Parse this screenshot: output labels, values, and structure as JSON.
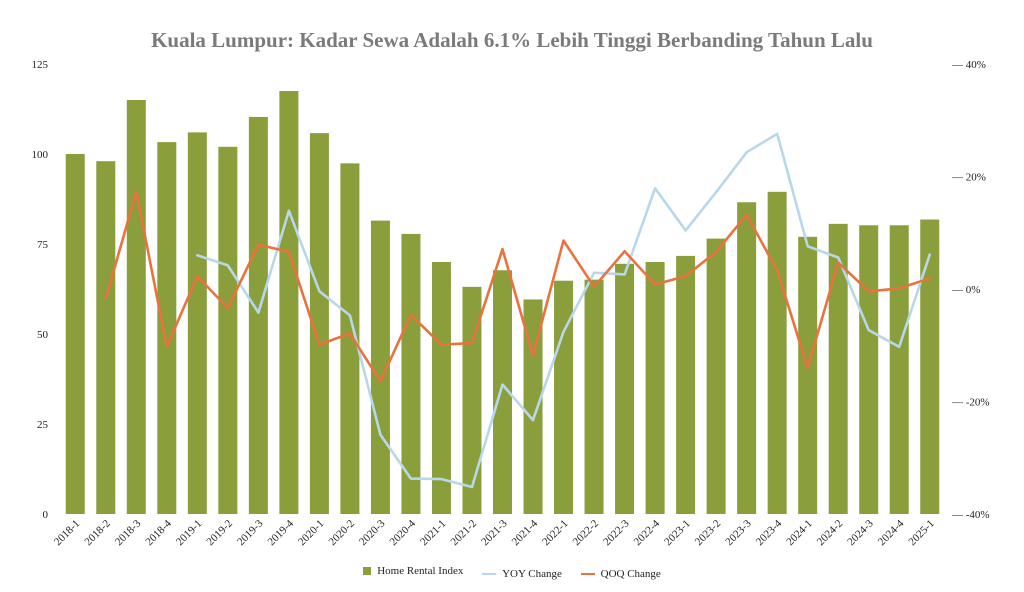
{
  "chart_data": {
    "type": "bar",
    "title": "Kuala Lumpur: Kadar Sewa Adalah 6.1% Lebih Tinggi Berbanding Tahun Lalu",
    "categories": [
      "2018-1",
      "2018-2",
      "2018-3",
      "2018-4",
      "2019-1",
      "2019-2",
      "2019-3",
      "2019-4",
      "2020-1",
      "2020-2",
      "2020-3",
      "2020-4",
      "2021-1",
      "2021-2",
      "2021-3",
      "2021-4",
      "2022-1",
      "2022-2",
      "2022-3",
      "2022-4",
      "2023-1",
      "2023-2",
      "2023-3",
      "2023-4",
      "2024-1",
      "2024-2",
      "2024-3",
      "2024-4",
      "2025-1"
    ],
    "series": [
      {
        "name": "Home Rental Index",
        "type": "bar",
        "axis": "left",
        "color": "#8a9e3c",
        "values": [
          100,
          98,
          115,
          103.3,
          106,
          102,
          110.3,
          117.5,
          105.8,
          97.4,
          81.5,
          77.8,
          70,
          63.1,
          67.7,
          59.6,
          64.8,
          65.1,
          69.5,
          70,
          71.7,
          76.5,
          86.6,
          89.5,
          77,
          80.6,
          80.2,
          80.2,
          81.8
        ]
      },
      {
        "name": "YOY Change",
        "type": "line",
        "axis": "right",
        "color": "#b8d8ea",
        "values": [
          null,
          null,
          null,
          null,
          6,
          4.2,
          -4.2,
          13.9,
          -0.4,
          -4.7,
          -25.9,
          -33.7,
          -33.8,
          -35.2,
          -17,
          -23.3,
          -7.6,
          2.9,
          2.6,
          17.9,
          10.4,
          17.2,
          24.3,
          27.6,
          7.6,
          5.6,
          -7.3,
          -10.3,
          6.1
        ]
      },
      {
        "name": "QOQ Change",
        "type": "line",
        "axis": "right",
        "color": "#e8733f",
        "values": [
          null,
          -1.7,
          17.3,
          -10.3,
          2.3,
          -3.4,
          7.9,
          6.6,
          -9.9,
          -7.9,
          -16.4,
          -4.6,
          -9.9,
          -9.6,
          7.1,
          -11.8,
          8.6,
          0.4,
          6.7,
          0.8,
          2.3,
          6.6,
          13.2,
          3.3,
          -14,
          4.7,
          -0.4,
          0.1,
          1.9
        ]
      }
    ],
    "y_left": {
      "min": 0,
      "max": 125,
      "ticks": [
        0,
        25,
        50,
        75,
        100,
        125
      ],
      "tick_labels": [
        "0",
        "25",
        "50",
        "75",
        "100",
        "125"
      ]
    },
    "y_right": {
      "min": -40,
      "max": 40,
      "ticks": [
        -40,
        -20,
        0,
        20,
        40
      ],
      "tick_labels": [
        "— -40%",
        "— -20%",
        "— 0%",
        "— 20%",
        "— 40%"
      ]
    },
    "grid": false,
    "legend_position": "bottom"
  }
}
